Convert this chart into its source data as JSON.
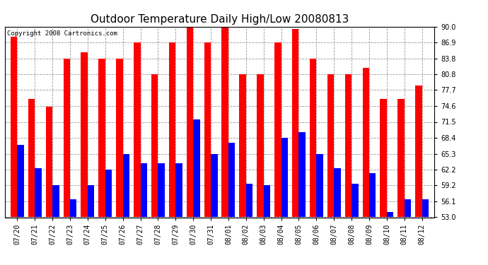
{
  "title": "Outdoor Temperature Daily High/Low 20080813",
  "copyright": "Copyright 2008 Cartronics.com",
  "dates": [
    "07/20",
    "07/21",
    "07/22",
    "07/23",
    "07/24",
    "07/25",
    "07/26",
    "07/27",
    "07/28",
    "07/29",
    "07/30",
    "07/31",
    "08/01",
    "08/02",
    "08/03",
    "08/04",
    "08/05",
    "08/06",
    "08/07",
    "08/08",
    "08/09",
    "08/10",
    "08/11",
    "08/12"
  ],
  "highs": [
    88.0,
    76.0,
    74.5,
    83.8,
    85.0,
    83.8,
    83.8,
    86.9,
    80.8,
    86.9,
    90.0,
    86.9,
    90.0,
    80.8,
    80.8,
    86.9,
    89.5,
    83.8,
    80.8,
    80.8,
    82.0,
    76.0,
    76.0,
    78.5
  ],
  "lows": [
    67.0,
    62.5,
    59.2,
    56.5,
    59.2,
    62.2,
    65.3,
    63.5,
    63.5,
    63.5,
    72.0,
    65.3,
    67.5,
    59.5,
    59.2,
    68.4,
    69.5,
    65.3,
    62.5,
    59.5,
    61.5,
    54.0,
    56.5,
    56.5
  ],
  "high_color": "#ff0000",
  "low_color": "#0000ff",
  "bg_color": "#ffffff",
  "grid_color": "#999999",
  "ylim_min": 53.0,
  "ylim_max": 90.0,
  "yticks": [
    53.0,
    56.1,
    59.2,
    62.2,
    65.3,
    68.4,
    71.5,
    74.6,
    77.7,
    80.8,
    83.8,
    86.9,
    90.0
  ],
  "title_fontsize": 11,
  "copyright_fontsize": 6.5,
  "tick_fontsize": 7,
  "bar_width": 0.38
}
